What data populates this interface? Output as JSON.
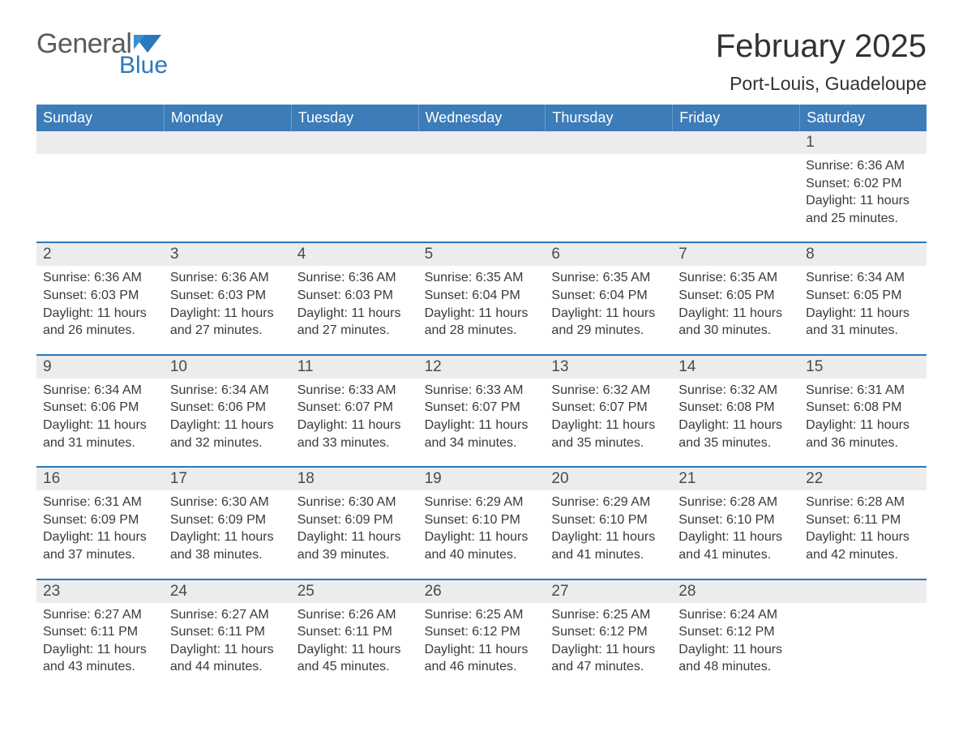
{
  "logo": {
    "general": "General",
    "blue": "Blue"
  },
  "title": "February 2025",
  "location": "Port-Louis, Guadeloupe",
  "colors": {
    "header_bg": "#3b7cb9",
    "header_text": "#ffffff",
    "accent": "#2a78bd",
    "daynum_bg": "#ececec",
    "body_text": "#3a3a3a",
    "logo_gray": "#5a5a5a"
  },
  "weekdays": [
    "Sunday",
    "Monday",
    "Tuesday",
    "Wednesday",
    "Thursday",
    "Friday",
    "Saturday"
  ],
  "labels": {
    "sunrise": "Sunrise:",
    "sunset": "Sunset:",
    "daylight": "Daylight:"
  },
  "weeks": [
    [
      null,
      null,
      null,
      null,
      null,
      null,
      {
        "n": "1",
        "sr": "6:36 AM",
        "ss": "6:02 PM",
        "dl": "11 hours and 25 minutes."
      }
    ],
    [
      {
        "n": "2",
        "sr": "6:36 AM",
        "ss": "6:03 PM",
        "dl": "11 hours and 26 minutes."
      },
      {
        "n": "3",
        "sr": "6:36 AM",
        "ss": "6:03 PM",
        "dl": "11 hours and 27 minutes."
      },
      {
        "n": "4",
        "sr": "6:36 AM",
        "ss": "6:03 PM",
        "dl": "11 hours and 27 minutes."
      },
      {
        "n": "5",
        "sr": "6:35 AM",
        "ss": "6:04 PM",
        "dl": "11 hours and 28 minutes."
      },
      {
        "n": "6",
        "sr": "6:35 AM",
        "ss": "6:04 PM",
        "dl": "11 hours and 29 minutes."
      },
      {
        "n": "7",
        "sr": "6:35 AM",
        "ss": "6:05 PM",
        "dl": "11 hours and 30 minutes."
      },
      {
        "n": "8",
        "sr": "6:34 AM",
        "ss": "6:05 PM",
        "dl": "11 hours and 31 minutes."
      }
    ],
    [
      {
        "n": "9",
        "sr": "6:34 AM",
        "ss": "6:06 PM",
        "dl": "11 hours and 31 minutes."
      },
      {
        "n": "10",
        "sr": "6:34 AM",
        "ss": "6:06 PM",
        "dl": "11 hours and 32 minutes."
      },
      {
        "n": "11",
        "sr": "6:33 AM",
        "ss": "6:07 PM",
        "dl": "11 hours and 33 minutes."
      },
      {
        "n": "12",
        "sr": "6:33 AM",
        "ss": "6:07 PM",
        "dl": "11 hours and 34 minutes."
      },
      {
        "n": "13",
        "sr": "6:32 AM",
        "ss": "6:07 PM",
        "dl": "11 hours and 35 minutes."
      },
      {
        "n": "14",
        "sr": "6:32 AM",
        "ss": "6:08 PM",
        "dl": "11 hours and 35 minutes."
      },
      {
        "n": "15",
        "sr": "6:31 AM",
        "ss": "6:08 PM",
        "dl": "11 hours and 36 minutes."
      }
    ],
    [
      {
        "n": "16",
        "sr": "6:31 AM",
        "ss": "6:09 PM",
        "dl": "11 hours and 37 minutes."
      },
      {
        "n": "17",
        "sr": "6:30 AM",
        "ss": "6:09 PM",
        "dl": "11 hours and 38 minutes."
      },
      {
        "n": "18",
        "sr": "6:30 AM",
        "ss": "6:09 PM",
        "dl": "11 hours and 39 minutes."
      },
      {
        "n": "19",
        "sr": "6:29 AM",
        "ss": "6:10 PM",
        "dl": "11 hours and 40 minutes."
      },
      {
        "n": "20",
        "sr": "6:29 AM",
        "ss": "6:10 PM",
        "dl": "11 hours and 41 minutes."
      },
      {
        "n": "21",
        "sr": "6:28 AM",
        "ss": "6:10 PM",
        "dl": "11 hours and 41 minutes."
      },
      {
        "n": "22",
        "sr": "6:28 AM",
        "ss": "6:11 PM",
        "dl": "11 hours and 42 minutes."
      }
    ],
    [
      {
        "n": "23",
        "sr": "6:27 AM",
        "ss": "6:11 PM",
        "dl": "11 hours and 43 minutes."
      },
      {
        "n": "24",
        "sr": "6:27 AM",
        "ss": "6:11 PM",
        "dl": "11 hours and 44 minutes."
      },
      {
        "n": "25",
        "sr": "6:26 AM",
        "ss": "6:11 PM",
        "dl": "11 hours and 45 minutes."
      },
      {
        "n": "26",
        "sr": "6:25 AM",
        "ss": "6:12 PM",
        "dl": "11 hours and 46 minutes."
      },
      {
        "n": "27",
        "sr": "6:25 AM",
        "ss": "6:12 PM",
        "dl": "11 hours and 47 minutes."
      },
      {
        "n": "28",
        "sr": "6:24 AM",
        "ss": "6:12 PM",
        "dl": "11 hours and 48 minutes."
      },
      null
    ]
  ]
}
